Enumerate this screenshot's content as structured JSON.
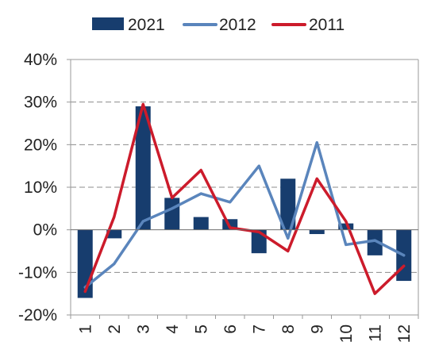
{
  "chart_data": {
    "type": "bar",
    "categories": [
      "1",
      "2",
      "3",
      "4",
      "5",
      "6",
      "7",
      "8",
      "9",
      "10",
      "11",
      "12"
    ],
    "series": [
      {
        "name": "2021",
        "type": "bar",
        "color": "#173d6e",
        "values": [
          -16,
          -2,
          29,
          7.5,
          3,
          2.5,
          -5.5,
          12,
          -1,
          1.5,
          -6,
          -12
        ]
      },
      {
        "name": "2012",
        "type": "line",
        "color": "#5a85bc",
        "values": [
          -13.5,
          -8,
          2,
          5,
          8.5,
          6.5,
          15,
          -2,
          20.5,
          -3.5,
          -2.5,
          -6
        ]
      },
      {
        "name": "2011",
        "type": "line",
        "color": "#cc1b2b",
        "values": [
          -14.5,
          3,
          29.5,
          7.5,
          14,
          0.5,
          -0.5,
          -5,
          12,
          2,
          -15,
          -8.5
        ]
      }
    ],
    "ylim": [
      -20,
      40
    ],
    "yticks": [
      "40%",
      "30%",
      "20%",
      "10%",
      "0%",
      "-10%",
      "-20%"
    ],
    "grid": true,
    "legend": "top",
    "xlabel": "",
    "ylabel": "",
    "title": ""
  }
}
